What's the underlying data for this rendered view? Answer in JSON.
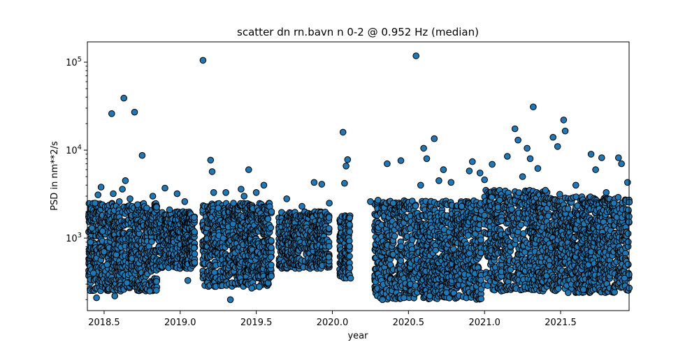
{
  "chart_data": {
    "type": "scatter",
    "title": "scatter dn rn.bavn n 0-2 @ 0.952 Hz (median)",
    "xlabel": "year",
    "ylabel": "PSD in nm**2/s",
    "xlim": [
      2018.39,
      2021.95
    ],
    "ylim": [
      150,
      170000
    ],
    "yscale": "log",
    "grid": false,
    "x_ticks": [
      2018.5,
      2019.0,
      2019.5,
      2020.0,
      2020.5,
      2021.0,
      2021.5
    ],
    "x_tick_labels": [
      "2018.5",
      "2019.0",
      "2019.5",
      "2020.0",
      "2020.5",
      "2021.0",
      "2021.5"
    ],
    "y_ticks": [
      1000,
      10000,
      100000
    ],
    "y_tick_labels": [
      "10^3",
      "10^4",
      "10^5"
    ],
    "marker_color": "#1f77b4",
    "marker_edge_color": "#000000",
    "points": [
      [
        2018.41,
        900
      ],
      [
        2018.42,
        1300
      ],
      [
        2018.43,
        400
      ],
      [
        2018.44,
        2500
      ],
      [
        2018.45,
        210
      ],
      [
        2018.46,
        3100
      ],
      [
        2018.48,
        3800
      ],
      [
        2018.49,
        1200
      ],
      [
        2018.5,
        700
      ],
      [
        2018.52,
        500
      ],
      [
        2018.55,
        26000
      ],
      [
        2018.56,
        3200
      ],
      [
        2018.57,
        220
      ],
      [
        2018.6,
        2600
      ],
      [
        2018.62,
        3600
      ],
      [
        2018.63,
        39000
      ],
      [
        2018.64,
        4500
      ],
      [
        2018.65,
        310
      ],
      [
        2018.67,
        2800
      ],
      [
        2018.7,
        27000
      ],
      [
        2018.72,
        2400
      ],
      [
        2018.75,
        8700
      ],
      [
        2018.78,
        2200
      ],
      [
        2018.8,
        250
      ],
      [
        2018.82,
        3000
      ],
      [
        2018.9,
        3700
      ],
      [
        2018.93,
        2100
      ],
      [
        2018.98,
        3200
      ],
      [
        2019.03,
        2600
      ],
      [
        2019.05,
        330
      ],
      [
        2019.15,
        105000
      ],
      [
        2019.2,
        7700
      ],
      [
        2019.21,
        5700
      ],
      [
        2019.22,
        3300
      ],
      [
        2019.25,
        2200
      ],
      [
        2019.3,
        3300
      ],
      [
        2019.33,
        200
      ],
      [
        2019.35,
        2500
      ],
      [
        2019.4,
        3600
      ],
      [
        2019.42,
        3000
      ],
      [
        2019.45,
        6000
      ],
      [
        2019.47,
        270
      ],
      [
        2019.5,
        3300
      ],
      [
        2019.55,
        4000
      ],
      [
        2019.52,
        280
      ],
      [
        2019.6,
        2000
      ],
      [
        2019.7,
        2800
      ],
      [
        2019.8,
        2300
      ],
      [
        2019.88,
        4300
      ],
      [
        2019.93,
        4100
      ],
      [
        2019.98,
        2500
      ],
      [
        2020.07,
        16000
      ],
      [
        2020.1,
        7800
      ],
      [
        2020.09,
        6600
      ],
      [
        2020.08,
        4200
      ],
      [
        2020.12,
        350
      ],
      [
        2020.25,
        2600
      ],
      [
        2020.3,
        2700
      ],
      [
        2020.33,
        200
      ],
      [
        2020.36,
        7000
      ],
      [
        2020.4,
        2500
      ],
      [
        2020.45,
        7600
      ],
      [
        2020.47,
        210
      ],
      [
        2020.55,
        118000
      ],
      [
        2020.58,
        4000
      ],
      [
        2020.6,
        10500
      ],
      [
        2020.62,
        8000
      ],
      [
        2020.64,
        220
      ],
      [
        2020.67,
        13500
      ],
      [
        2020.7,
        4500
      ],
      [
        2020.73,
        6000
      ],
      [
        2020.75,
        240
      ],
      [
        2020.78,
        4300
      ],
      [
        2020.85,
        2300
      ],
      [
        2020.9,
        5800
      ],
      [
        2020.92,
        7400
      ],
      [
        2020.97,
        5500
      ],
      [
        2021.0,
        4600
      ],
      [
        2021.05,
        6900
      ],
      [
        2021.1,
        2700
      ],
      [
        2021.15,
        8500
      ],
      [
        2021.2,
        17500
      ],
      [
        2021.22,
        13000
      ],
      [
        2021.25,
        5000
      ],
      [
        2021.28,
        10500
      ],
      [
        2021.3,
        8000
      ],
      [
        2021.32,
        31000
      ],
      [
        2021.35,
        6200
      ],
      [
        2021.4,
        3500
      ],
      [
        2021.45,
        14000
      ],
      [
        2021.48,
        11000
      ],
      [
        2021.52,
        22000
      ],
      [
        2021.53,
        16500
      ],
      [
        2021.55,
        240
      ],
      [
        2021.6,
        4000
      ],
      [
        2021.65,
        260
      ],
      [
        2021.7,
        9000
      ],
      [
        2021.73,
        6000
      ],
      [
        2021.77,
        8200
      ],
      [
        2021.8,
        3300
      ],
      [
        2021.85,
        2500
      ],
      [
        2021.88,
        8200
      ],
      [
        2021.9,
        7000
      ],
      [
        2021.92,
        350
      ],
      [
        2021.94,
        4300
      ]
    ],
    "dense_clusters": [
      {
        "x_from": 2018.4,
        "x_to": 2018.85,
        "y_from": 250,
        "y_to": 2500
      },
      {
        "x_from": 2018.86,
        "x_to": 2019.1,
        "y_from": 450,
        "y_to": 2000
      },
      {
        "x_from": 2019.15,
        "x_to": 2019.6,
        "y_from": 280,
        "y_to": 2500
      },
      {
        "x_from": 2019.65,
        "x_to": 2019.98,
        "y_from": 450,
        "y_to": 2000
      },
      {
        "x_from": 2020.05,
        "x_to": 2020.12,
        "y_from": 350,
        "y_to": 1800
      },
      {
        "x_from": 2020.28,
        "x_to": 2020.98,
        "y_from": 200,
        "y_to": 2700
      },
      {
        "x_from": 2021.0,
        "x_to": 2021.5,
        "y_from": 250,
        "y_to": 3500
      },
      {
        "x_from": 2021.5,
        "x_to": 2021.95,
        "y_from": 240,
        "y_to": 3000
      }
    ]
  }
}
